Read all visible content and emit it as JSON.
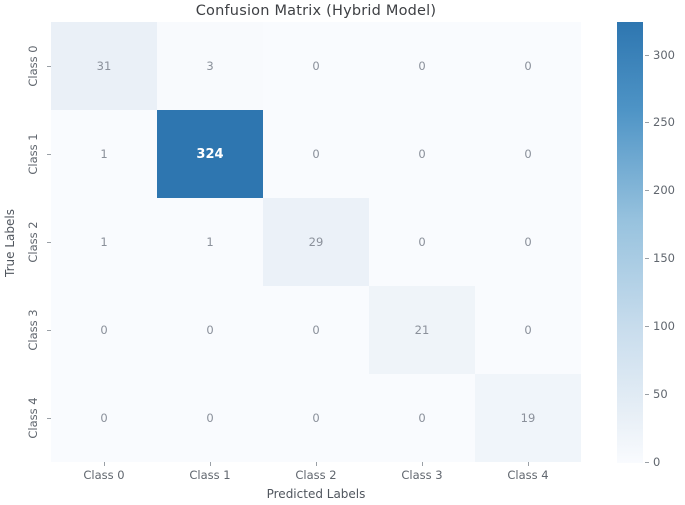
{
  "figure": {
    "background": "#ffffff"
  },
  "chart_data": {
    "type": "heatmap",
    "title": "Confusion Matrix (Hybrid Model)",
    "xlabel": "Predicted Labels",
    "ylabel": "True Labels",
    "x_categories": [
      "Class 0",
      "Class 1",
      "Class 2",
      "Class 3",
      "Class 4"
    ],
    "y_categories": [
      "Class 0",
      "Class 1",
      "Class 2",
      "Class 3",
      "Class 4"
    ],
    "matrix": [
      [
        31,
        3,
        0,
        0,
        0
      ],
      [
        1,
        324,
        0,
        0,
        0
      ],
      [
        1,
        1,
        29,
        0,
        0
      ],
      [
        0,
        0,
        0,
        21,
        0
      ],
      [
        0,
        0,
        0,
        0,
        19
      ]
    ],
    "vmin": 0,
    "vmax": 324,
    "colorbar_ticks": [
      0,
      50,
      100,
      150,
      200,
      250,
      300
    ],
    "colormap": "Blues",
    "colormap_stops": [
      {
        "t": 0.0,
        "color": "#f9fbfe"
      },
      {
        "t": 0.1,
        "color": "#e9f0f7"
      },
      {
        "t": 0.3,
        "color": "#c9dded"
      },
      {
        "t": 0.55,
        "color": "#97c2de"
      },
      {
        "t": 0.8,
        "color": "#4e94c6"
      },
      {
        "t": 1.0,
        "color": "#2e76b0"
      }
    ],
    "annotation_colors": {
      "light": "#8a909a",
      "dark": "#ffffff"
    },
    "legend_position": "right-colorbar",
    "grid": false
  }
}
